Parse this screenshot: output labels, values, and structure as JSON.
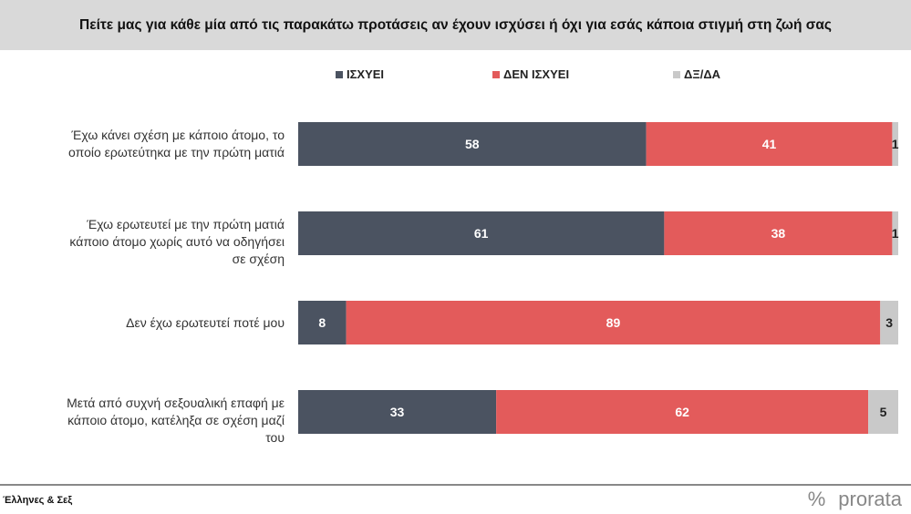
{
  "title": "Πείτε μας για κάθε μία από τις παρακάτω προτάσεις αν έχουν ισχύσει ή όχι για εσάς κάποια στιγμή στη ζωή σας",
  "source": "Έλληνες & Σεξ",
  "logo": {
    "percent": "%",
    "text": "prorata"
  },
  "chart_data": {
    "type": "bar",
    "orientation": "horizontal",
    "stacked": true,
    "xlim": [
      0,
      100
    ],
    "legend_position": "top",
    "categories": [
      "Έχω κάνει σχέση με κάποιο άτομο, το οποίο ερωτεύτηκα με την πρώτη ματιά",
      "Έχω ερωτευτεί με την πρώτη ματιά κάποιο άτομο χωρίς αυτό να οδηγήσει σε σχέση",
      "Δεν έχω ερωτευτεί ποτέ μου",
      "Μετά από συχνή σεξουαλική επαφή με κάποιο άτομο, κατέληξα σε σχέση μαζί του"
    ],
    "series": [
      {
        "name": "ΙΣΧΥΕΙ",
        "color": "#4b5361",
        "values": [
          58,
          61,
          8,
          33
        ]
      },
      {
        "name": "ΔΕΝ ΙΣΧΥΕΙ",
        "color": "#e35b5b",
        "values": [
          41,
          38,
          89,
          62
        ]
      },
      {
        "name": "ΔΞ/ΔΑ",
        "color": "#c9c9c9",
        "values": [
          1,
          1,
          3,
          5
        ]
      }
    ]
  }
}
